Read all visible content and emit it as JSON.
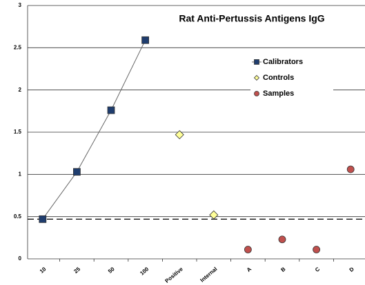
{
  "chart_data": {
    "type": "scatter",
    "title": "Rat Anti-Pertussis Antigens IgG",
    "categories": [
      "10",
      "25",
      "50",
      "100",
      "Positive",
      "Internal",
      "A",
      "B",
      "C",
      "D"
    ],
    "series": [
      {
        "name": "Calibrators",
        "color": "#1f3d6e",
        "marker": "square",
        "line": true,
        "values": [
          0.47,
          1.03,
          1.76,
          2.59,
          null,
          null,
          null,
          null,
          null,
          null
        ]
      },
      {
        "name": "Controls",
        "color": "#ffff99",
        "marker": "diamond",
        "line": false,
        "values": [
          null,
          null,
          null,
          null,
          1.47,
          0.52,
          null,
          null,
          null,
          null
        ]
      },
      {
        "name": "Samples",
        "color": "#c0504d",
        "marker": "circle",
        "line": false,
        "values": [
          null,
          null,
          null,
          null,
          null,
          null,
          0.11,
          0.23,
          0.11,
          1.06
        ]
      }
    ],
    "reference_line": 0.47,
    "ylim": [
      0,
      3
    ],
    "yticks": [
      0,
      0.5,
      1,
      1.5,
      2,
      2.5,
      3
    ],
    "grid": true,
    "legend": "top-right"
  }
}
